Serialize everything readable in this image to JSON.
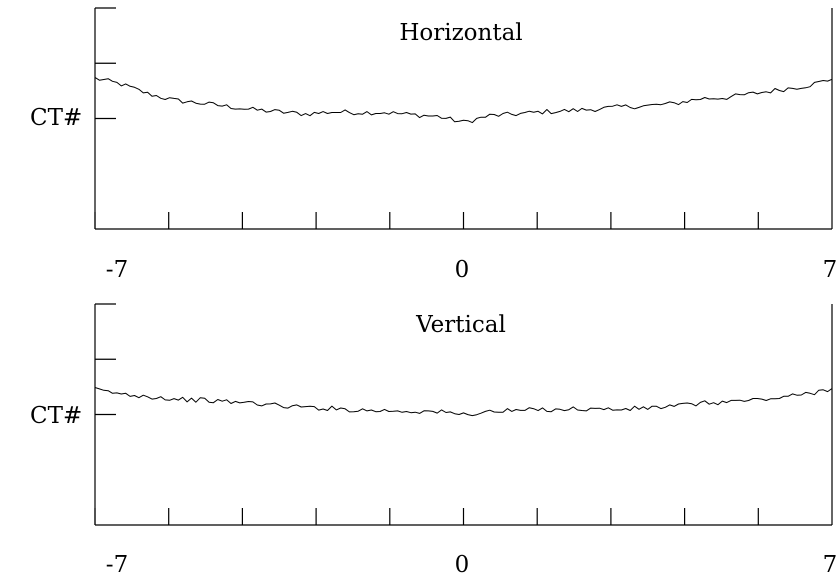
{
  "chart_data": [
    {
      "type": "line",
      "title": "Horizontal",
      "ylabel": "CT#",
      "xlim": [
        -7,
        7
      ],
      "x_tick_labels": [
        "-7",
        "0",
        "7"
      ],
      "x_ticks": [
        -7,
        -5.6,
        -4.2,
        -2.8,
        -1.4,
        0,
        1.4,
        2.8,
        4.2,
        5.6,
        7
      ],
      "ylim": [
        0,
        4
      ],
      "y_ticks": [
        2,
        3
      ],
      "grid": false,
      "series": [
        {
          "x": [
            -7,
            -6.5,
            -6,
            -5.5,
            -5,
            -4.5,
            -4,
            -3.5,
            -3,
            -2.5,
            -2,
            -1.5,
            -1,
            -0.5,
            0,
            0.5,
            1,
            1.5,
            2,
            2.5,
            3,
            3.5,
            4,
            4.5,
            5,
            5.5,
            6,
            6.5,
            7
          ],
          "y": [
            2.73,
            2.62,
            2.45,
            2.33,
            2.28,
            2.22,
            2.16,
            2.12,
            2.08,
            2.12,
            2.11,
            2.11,
            2.07,
            2.04,
            1.93,
            2.05,
            2.08,
            2.12,
            2.14,
            2.17,
            2.21,
            2.23,
            2.27,
            2.36,
            2.38,
            2.45,
            2.52,
            2.59,
            2.71
          ]
        }
      ]
    },
    {
      "type": "line",
      "title": "Vertical",
      "ylabel": "CT#",
      "xlim": [
        -7,
        7
      ],
      "x_tick_labels": [
        "-7",
        "0",
        "7"
      ],
      "x_ticks": [
        -7,
        -5.6,
        -4.2,
        -2.8,
        -1.4,
        0,
        1.4,
        2.8,
        4.2,
        5.6,
        7
      ],
      "ylim": [
        0,
        4
      ],
      "y_ticks": [
        2,
        3
      ],
      "grid": false,
      "series": [
        {
          "x": [
            -7,
            -6.5,
            -6,
            -5.5,
            -5,
            -4.5,
            -4,
            -3.5,
            -3,
            -2.5,
            -2,
            -1.5,
            -1,
            -0.5,
            0,
            0.5,
            1,
            1.5,
            2,
            2.5,
            3,
            3.5,
            4,
            4.5,
            5,
            5.5,
            6,
            6.5,
            7
          ],
          "y": [
            2.45,
            2.37,
            2.33,
            2.28,
            2.26,
            2.23,
            2.21,
            2.16,
            2.13,
            2.11,
            2.08,
            2.07,
            2.06,
            2.05,
            2.0,
            2.05,
            2.07,
            2.09,
            2.1,
            2.1,
            2.09,
            2.12,
            2.15,
            2.2,
            2.23,
            2.26,
            2.3,
            2.37,
            2.47
          ]
        }
      ]
    }
  ]
}
